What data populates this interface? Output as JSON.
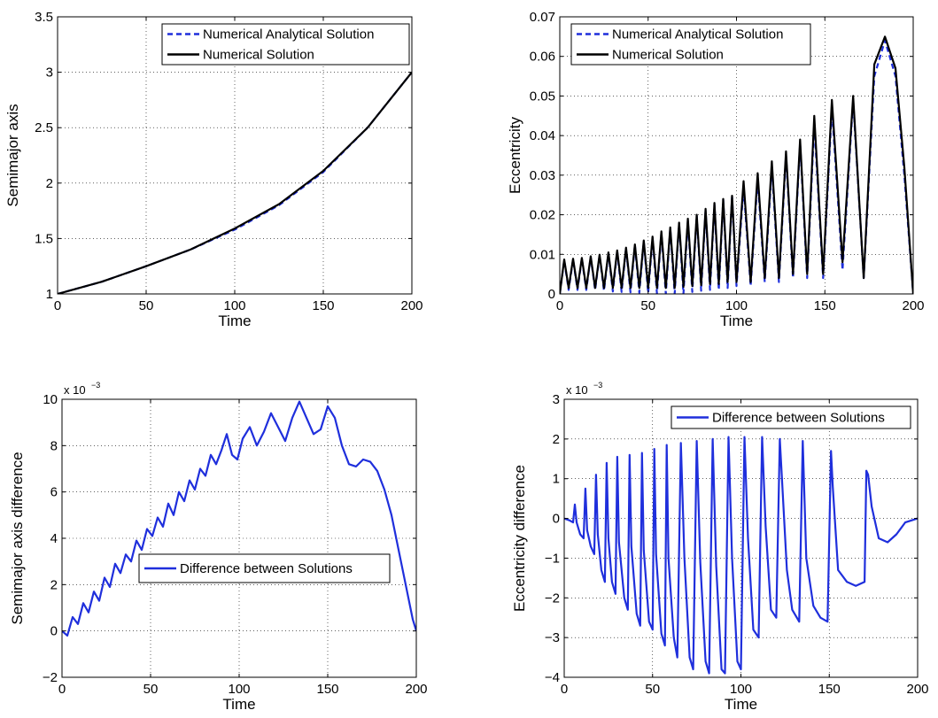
{
  "figure": {
    "description_free": true
  },
  "chart_data": [
    {
      "type": "line",
      "xlabel": "Time",
      "ylabel": "Semimajor axis",
      "xlim": [
        0,
        200
      ],
      "ylim": [
        1,
        3.5
      ],
      "xticks": [
        0,
        50,
        100,
        150,
        200
      ],
      "yticks": [
        1,
        1.5,
        2,
        2.5,
        3,
        3.5
      ],
      "ytick_labels": [
        "1",
        "1.5",
        "2",
        "2.5",
        "3",
        "3.5"
      ],
      "exponent_label": "",
      "grid": true,
      "legend_position": "top-right",
      "series": [
        {
          "name": "Numerical Analytical Solution",
          "style": "dashed",
          "color": "#1f2fdc",
          "x": [
            0,
            25,
            50,
            75,
            100,
            125,
            150,
            175,
            200
          ],
          "y": [
            1.0,
            1.11,
            1.25,
            1.4,
            1.58,
            1.8,
            2.1,
            2.5,
            3.0
          ]
        },
        {
          "name": "Numerical Solution",
          "style": "solid",
          "color": "#000000",
          "x": [
            0,
            25,
            50,
            75,
            100,
            125,
            150,
            175,
            200
          ],
          "y": [
            1.0,
            1.11,
            1.25,
            1.4,
            1.59,
            1.81,
            2.11,
            2.5,
            3.0
          ]
        }
      ]
    },
    {
      "type": "line",
      "xlabel": "Time",
      "ylabel": "Eccentricity",
      "xlim": [
        0,
        200
      ],
      "ylim": [
        0,
        0.07
      ],
      "xticks": [
        0,
        50,
        100,
        150,
        200
      ],
      "yticks": [
        0,
        0.01,
        0.02,
        0.03,
        0.04,
        0.05,
        0.06,
        0.07
      ],
      "ytick_labels": [
        "0",
        "0.01",
        "0.02",
        "0.03",
        "0.04",
        "0.05",
        "0.06",
        "0.07"
      ],
      "exponent_label": "",
      "grid": true,
      "legend_position": "top-right",
      "series": [
        {
          "name": "Numerical Analytical Solution",
          "style": "dashed",
          "color": "#1f2fdc",
          "x": [
            0,
            2.5,
            5,
            7.5,
            10,
            12.5,
            15,
            17.5,
            20,
            22.5,
            25,
            27.5,
            30,
            32.5,
            35,
            37.5,
            40,
            42.5,
            45,
            47.5,
            50,
            52.5,
            55,
            57.5,
            60,
            62.5,
            65,
            67.5,
            70,
            72.5,
            75,
            77.5,
            80,
            82.5,
            85,
            87.5,
            90,
            92.5,
            95,
            97.5,
            100,
            104,
            108,
            112,
            116,
            120,
            124,
            128,
            132,
            136,
            140,
            144,
            149,
            154,
            160,
            166,
            172,
            178,
            184,
            190,
            195,
            200
          ],
          "y": [
            0,
            0.0085,
            0.001,
            0.0087,
            0.001,
            0.0089,
            0.001,
            0.0093,
            0.001,
            0.0097,
            0.0008,
            0.0103,
            0.0006,
            0.0108,
            0.0005,
            0.0115,
            0.0004,
            0.0123,
            0.0003,
            0.0132,
            0.0002,
            0.0142,
            0.0001,
            0.0155,
            0.0,
            0.0165,
            0.0,
            0.0178,
            0.0,
            0.0185,
            0.0005,
            0.0197,
            0.0008,
            0.021,
            0.001,
            0.0226,
            0.001,
            0.0238,
            0.0015,
            0.0245,
            0.002,
            0.027,
            0.002,
            0.029,
            0.003,
            0.032,
            0.003,
            0.035,
            0.004,
            0.038,
            0.004,
            0.043,
            0.004,
            0.047,
            0.006,
            0.049,
            0.004,
            0.055,
            0.064,
            0.055,
            0.03,
            0.0
          ]
        },
        {
          "name": "Numerical Solution",
          "style": "solid",
          "color": "#000000",
          "x": [
            0,
            2.5,
            5,
            7.5,
            10,
            12.5,
            15,
            17.5,
            20,
            22.5,
            25,
            27.5,
            30,
            32.5,
            35,
            37.5,
            40,
            42.5,
            45,
            47.5,
            50,
            52.5,
            55,
            57.5,
            60,
            62.5,
            65,
            67.5,
            70,
            72.5,
            75,
            77.5,
            80,
            82.5,
            85,
            87.5,
            90,
            92.5,
            95,
            97.5,
            100,
            104,
            108,
            112,
            116,
            120,
            124,
            128,
            132,
            136,
            140,
            144,
            149,
            154,
            160,
            166,
            172,
            178,
            184,
            190,
            195,
            200
          ],
          "y": [
            0,
            0.0087,
            0.0015,
            0.0089,
            0.0015,
            0.0091,
            0.0015,
            0.0095,
            0.0015,
            0.0099,
            0.0015,
            0.0105,
            0.0015,
            0.011,
            0.0015,
            0.0117,
            0.0015,
            0.0125,
            0.0015,
            0.0135,
            0.0015,
            0.0145,
            0.0015,
            0.0158,
            0.0015,
            0.0168,
            0.0015,
            0.018,
            0.0018,
            0.019,
            0.002,
            0.02,
            0.0022,
            0.0215,
            0.0025,
            0.023,
            0.0025,
            0.024,
            0.003,
            0.0248,
            0.003,
            0.0285,
            0.003,
            0.0305,
            0.004,
            0.0335,
            0.004,
            0.036,
            0.005,
            0.039,
            0.005,
            0.045,
            0.005,
            0.049,
            0.008,
            0.05,
            0.004,
            0.058,
            0.065,
            0.057,
            0.032,
            0.0
          ]
        }
      ]
    },
    {
      "type": "line",
      "xlabel": "Time",
      "ylabel": "Semimajor axis difference",
      "xlim": [
        0,
        200
      ],
      "ylim": [
        -2,
        10
      ],
      "xticks": [
        0,
        50,
        100,
        150,
        200
      ],
      "yticks": [
        -2,
        0,
        2,
        4,
        6,
        8,
        10
      ],
      "ytick_labels": [
        "−2",
        "0",
        "2",
        "4",
        "6",
        "8",
        "10"
      ],
      "exponent_label": "x 10",
      "exponent_power": "−3",
      "grid": true,
      "legend_position": "center-right",
      "series": [
        {
          "name": "Difference between Solutions",
          "style": "solid",
          "color": "#1f2fdc",
          "x": [
            0,
            3,
            6,
            9,
            12,
            15,
            18,
            21,
            24,
            27,
            30,
            33,
            36,
            39,
            42,
            45,
            48,
            51,
            54,
            57,
            60,
            63,
            66,
            69,
            72,
            75,
            78,
            81,
            84,
            87,
            90,
            93,
            96,
            99,
            102,
            106,
            110,
            114,
            118,
            122,
            126,
            130,
            134,
            138,
            142,
            146,
            150,
            154,
            158,
            162,
            166,
            170,
            174,
            178,
            182,
            186,
            190,
            194,
            198,
            200
          ],
          "y": [
            0,
            -0.2,
            0.6,
            0.3,
            1.2,
            0.8,
            1.7,
            1.3,
            2.3,
            1.9,
            2.9,
            2.5,
            3.3,
            3.0,
            3.9,
            3.5,
            4.4,
            4.1,
            4.9,
            4.5,
            5.5,
            5.0,
            6.0,
            5.6,
            6.5,
            6.1,
            7.0,
            6.7,
            7.6,
            7.2,
            7.8,
            8.5,
            7.6,
            7.4,
            8.3,
            8.8,
            8.0,
            8.6,
            9.4,
            8.8,
            8.2,
            9.2,
            9.9,
            9.2,
            8.5,
            8.7,
            9.7,
            9.2,
            8.0,
            7.2,
            7.1,
            7.4,
            7.3,
            6.9,
            6.1,
            5.0,
            3.5,
            2.0,
            0.5,
            0.0
          ]
        }
      ]
    },
    {
      "type": "line",
      "xlabel": "Time",
      "ylabel": "Eccentricity difference",
      "xlim": [
        0,
        200
      ],
      "ylim": [
        -4,
        3
      ],
      "xticks": [
        0,
        50,
        100,
        150,
        200
      ],
      "yticks": [
        -4,
        -3,
        -2,
        -1,
        0,
        1,
        2,
        3
      ],
      "ytick_labels": [
        "−4",
        "−3",
        "−2",
        "−1",
        "0",
        "1",
        "2",
        "3"
      ],
      "exponent_label": "x 10",
      "exponent_power": "−3",
      "grid": true,
      "legend_position": "top-right",
      "series": [
        {
          "name": "Difference between Solutions",
          "style": "solid",
          "color": "#1f2fdc",
          "x": [
            0,
            3,
            5,
            6,
            7,
            9,
            11,
            12,
            13,
            15,
            17,
            18,
            19,
            21,
            23,
            24,
            25,
            27,
            29,
            30,
            31,
            34,
            36,
            37,
            38,
            41,
            43,
            44,
            45,
            48,
            50,
            51,
            52,
            55,
            57,
            58,
            59,
            62,
            64,
            66,
            68,
            71,
            73,
            75,
            77,
            80,
            82,
            84,
            86,
            89,
            91,
            93,
            95,
            98,
            100,
            102,
            104,
            107,
            110,
            112,
            114,
            117,
            120,
            122,
            126,
            129,
            133,
            135,
            137,
            141,
            145,
            149,
            151,
            152,
            155,
            160,
            165,
            170,
            171,
            172,
            174,
            178,
            183,
            188,
            193,
            200
          ],
          "y": [
            0.0,
            -0.05,
            -0.1,
            0.35,
            -0.1,
            -0.4,
            -0.5,
            0.75,
            -0.3,
            -0.7,
            -0.9,
            1.1,
            -0.4,
            -1.3,
            -1.6,
            1.4,
            -0.5,
            -1.6,
            -1.9,
            1.55,
            -0.6,
            -2.0,
            -2.3,
            1.6,
            -0.7,
            -2.4,
            -2.7,
            1.65,
            -0.8,
            -2.6,
            -2.8,
            1.75,
            -0.9,
            -2.9,
            -3.2,
            1.85,
            -1.0,
            -3.0,
            -3.5,
            1.9,
            -1.0,
            -3.5,
            -3.8,
            1.95,
            -1.1,
            -3.6,
            -3.9,
            2.0,
            -1.2,
            -3.8,
            -3.9,
            2.05,
            -1.0,
            -3.6,
            -3.8,
            2.05,
            -0.5,
            -2.8,
            -3.0,
            2.05,
            -0.2,
            -2.3,
            -2.5,
            2.0,
            -1.3,
            -2.3,
            -2.6,
            1.95,
            -1.0,
            -2.2,
            -2.5,
            -2.6,
            1.7,
            0.8,
            -1.3,
            -1.6,
            -1.7,
            -1.6,
            1.2,
            1.1,
            0.3,
            -0.5,
            -0.6,
            -0.4,
            -0.1,
            0.0
          ]
        }
      ]
    }
  ]
}
